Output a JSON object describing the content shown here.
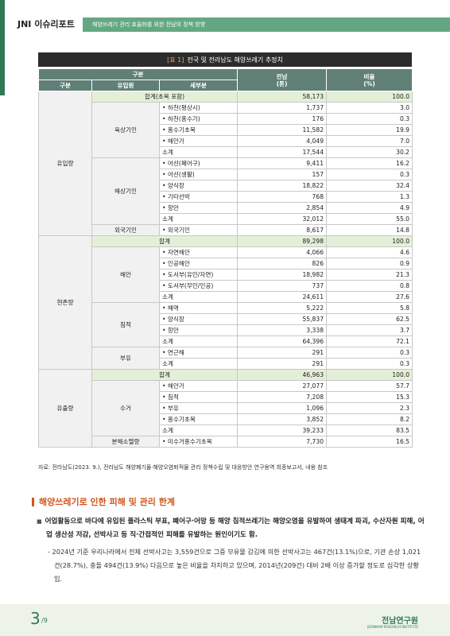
{
  "header": {
    "logo": "JNI 이슈리포트",
    "subtitle": "해양쓰레기 관리 효율화를 위한 전남의 정책 방향"
  },
  "table": {
    "caption_tag": "[표 1]",
    "caption": "전국 및 전라남도 해양쓰레기 추정치",
    "head": {
      "group": "구분",
      "col1": "구분",
      "col2": "유입원",
      "col3": "세부분",
      "col4": "전남\n(톤)",
      "col5": "비율\n(%)"
    },
    "sections": [
      {
        "name": "유입량",
        "total": {
          "label": "합계(초목 포함)",
          "value": "58,173",
          "ratio": "100.0"
        },
        "groups": [
          {
            "name": "육상기인",
            "rows": [
              {
                "item": "• 하천(평상시)",
                "value": "1,737",
                "ratio": "3.0"
              },
              {
                "item": "• 하천(홍수기)",
                "value": "176",
                "ratio": "0.3"
              },
              {
                "item": "• 홍수기초목",
                "value": "11,582",
                "ratio": "19.9"
              },
              {
                "item": "• 해안가",
                "value": "4,049",
                "ratio": "7.0"
              },
              {
                "item": "소계",
                "value": "17,544",
                "ratio": "30.2"
              }
            ]
          },
          {
            "name": "해상기인",
            "rows": [
              {
                "item": "• 어선(폐어구)",
                "value": "9,411",
                "ratio": "16.2"
              },
              {
                "item": "• 어선(생활)",
                "value": "157",
                "ratio": "0.3"
              },
              {
                "item": "• 양식장",
                "value": "18,822",
                "ratio": "32.4"
              },
              {
                "item": "• 기타선박",
                "value": "768",
                "ratio": "1.3"
              },
              {
                "item": "• 항만",
                "value": "2,854",
                "ratio": "4.9"
              },
              {
                "item": "소계",
                "value": "32,012",
                "ratio": "55.0"
              }
            ]
          },
          {
            "name": "외국기인",
            "rows": [
              {
                "item": "• 외국기인",
                "value": "8,617",
                "ratio": "14.8"
              }
            ]
          }
        ]
      },
      {
        "name": "현존량",
        "total": {
          "label": "합계",
          "value": "89,298",
          "ratio": "100.0"
        },
        "groups": [
          {
            "name": "해안",
            "rows": [
              {
                "item": "• 자연해안",
                "value": "4,066",
                "ratio": "4.6"
              },
              {
                "item": "• 인공해안",
                "value": "826",
                "ratio": "0.9"
              },
              {
                "item": "• 도서부(유인/자연)",
                "value": "18,982",
                "ratio": "21.3"
              },
              {
                "item": "• 도서부(무인/인공)",
                "value": "737",
                "ratio": "0.8"
              },
              {
                "item": "소계",
                "value": "24,611",
                "ratio": "27.6"
              }
            ]
          },
          {
            "name": "침적",
            "rows": [
              {
                "item": "• 해역",
                "value": "5,222",
                "ratio": "5.8"
              },
              {
                "item": "• 양식장",
                "value": "55,837",
                "ratio": "62.5"
              },
              {
                "item": "• 항만",
                "value": "3,338",
                "ratio": "3.7"
              },
              {
                "item": "소계",
                "value": "64,396",
                "ratio": "72.1"
              }
            ]
          },
          {
            "name": "부유",
            "rows": [
              {
                "item": "• 연근해",
                "value": "291",
                "ratio": "0.3"
              },
              {
                "item": "소계",
                "value": "291",
                "ratio": "0.3"
              }
            ]
          }
        ]
      },
      {
        "name": "유출량",
        "total": {
          "label": "합계",
          "value": "46,963",
          "ratio": "100.0"
        },
        "groups": [
          {
            "name": "수거",
            "rows": [
              {
                "item": "• 해안가",
                "value": "27,077",
                "ratio": "57.7"
              },
              {
                "item": "• 침적",
                "value": "7,208",
                "ratio": "15.3"
              },
              {
                "item": "• 부유",
                "value": "1,096",
                "ratio": "2.3"
              },
              {
                "item": "• 홍수기초목",
                "value": "3,852",
                "ratio": "8.2"
              },
              {
                "item": "소계",
                "value": "39,233",
                "ratio": "83.5"
              }
            ]
          },
          {
            "name": "분해소멸량",
            "rows": [
              {
                "item": "• 미수거홍수기초목",
                "value": "7,730",
                "ratio": "16.5"
              }
            ]
          }
        ]
      }
    ],
    "source": "자료: 전라남도(2023. 9.), 전라남도 해양폐기물·해양오염퇴적물 관리 정책수립 및 대응방안 연구용역 최종보고서, 내용 참조"
  },
  "section": {
    "heading": "해양쓰레기로 인한 피해 및 관리 한계",
    "bullet": "어업활동으로 바다에 유입된 플라스틱 부표, 폐어구·어망 등 해양 침적쓰레기는 해양오염을 유발하여 생태계 파괴, 수산자원 피해, 어업 생산성 저감, 선박사고 등 직·간접적인 피해를 유발하는 원인이기도 함.",
    "detail": "- 2024년 기준 우리나라에서 전체 선박사고는 3,559건으로 그중 부유물 감김에 의한 선박사고는 467건(13.1%)으로, 기관 손상 1,021건(28.7%), 충돌 494건(13.9%) 다음으로 높은 비율을 차지하고 있으며, 2014년(209건) 대비 2배 이상 증가할 정도로 심각한 상황임."
  },
  "footer": {
    "page": "3",
    "total": "/9",
    "logo": "전남연구원",
    "logo_en": "JEONNAM RESEARCH INSTITUTE"
  }
}
